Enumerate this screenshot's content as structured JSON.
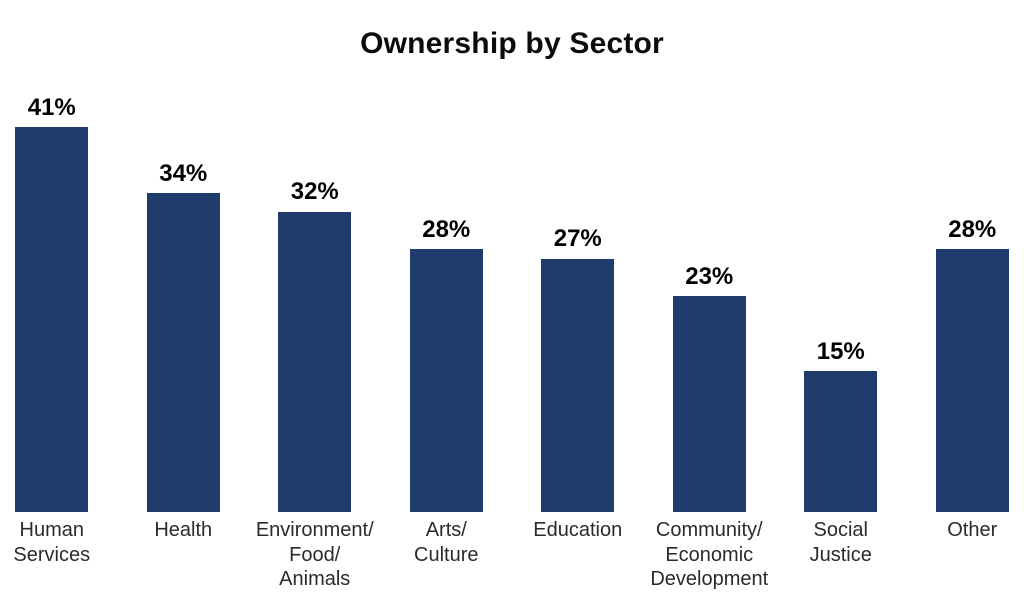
{
  "chart_data": {
    "type": "bar",
    "title": "Ownership by Sector",
    "categories": [
      "Human Services",
      "Health",
      "Environment/Food/Animals",
      "Arts/Culture",
      "Education",
      "Community/Economic Development",
      "Social Justice",
      "Other"
    ],
    "category_label_lines": [
      [
        "Human",
        "Services"
      ],
      [
        "Health"
      ],
      [
        "Environment/",
        "Food/",
        "Animals"
      ],
      [
        "Arts/",
        "Culture"
      ],
      [
        "Education"
      ],
      [
        "Community/",
        "Economic",
        "Development"
      ],
      [
        "Social",
        "Justice"
      ],
      [
        "Other"
      ]
    ],
    "values": [
      41,
      34,
      32,
      28,
      27,
      23,
      15,
      28
    ],
    "value_labels": [
      "41%",
      "34%",
      "32%",
      "28%",
      "27%",
      "23%",
      "15%",
      "28%"
    ],
    "unit": "%",
    "ylim": [
      0,
      46
    ],
    "grid": false,
    "legend": false,
    "axes_visible": false,
    "colors": {
      "bar": "#1f3c6d",
      "title_text": "#0b0b0b",
      "value_label_text": "#000000",
      "category_label_text": "#2b2b2b",
      "background": "#ffffff"
    }
  }
}
